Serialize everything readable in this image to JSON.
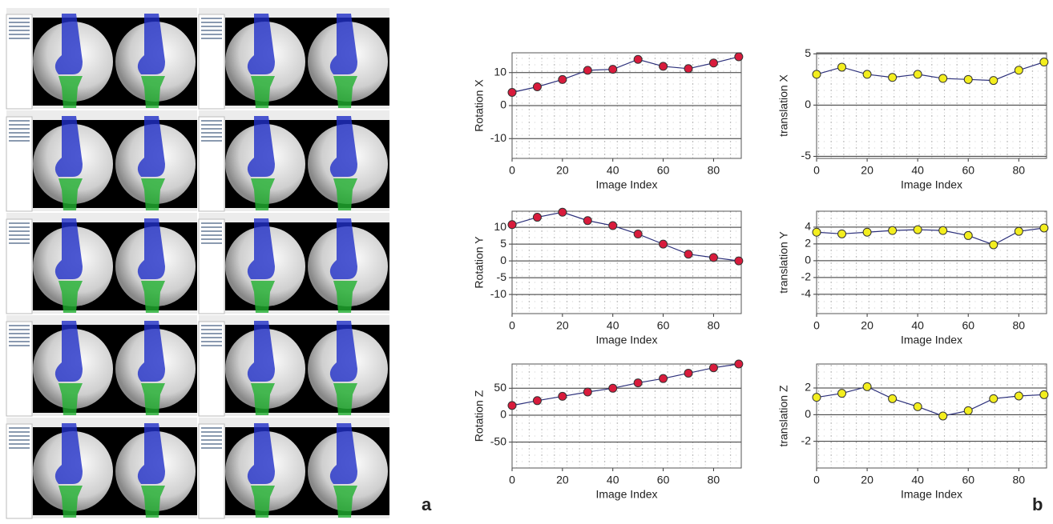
{
  "panel_labels": [
    "a",
    "b"
  ],
  "chart_data": [
    {
      "type": "line",
      "ylabel": "Rotation X",
      "xlabel": "Image Index",
      "x": [
        0,
        10,
        20,
        30,
        40,
        50,
        60,
        70,
        80,
        90
      ],
      "xlim": [
        0,
        91
      ],
      "xticks": [
        0,
        20,
        40,
        60,
        80
      ],
      "ylim": [
        -16,
        16
      ],
      "yticks": [
        -10,
        0,
        10
      ],
      "grid": true,
      "line_color": "#2b2f7a",
      "series": [
        {
          "color": "#d81b3c",
          "values": [
            4.0,
            5.7,
            7.9,
            10.7,
            11.0,
            14.0,
            11.9,
            11.2,
            12.9,
            14.8
          ]
        }
      ]
    },
    {
      "type": "line",
      "ylabel": "translation X",
      "xlabel": "Image Index",
      "x": [
        0,
        10,
        20,
        30,
        40,
        50,
        60,
        70,
        80,
        90
      ],
      "xlim": [
        0,
        91
      ],
      "xticks": [
        0,
        20,
        40,
        60,
        80
      ],
      "ylim": [
        -5.2,
        5.1
      ],
      "yticks": [
        -5,
        0,
        5
      ],
      "grid": true,
      "line_color": "#2b2f7a",
      "series": [
        {
          "color": "#f3ee1e",
          "values": [
            3.0,
            3.7,
            3.0,
            2.7,
            3.0,
            2.6,
            2.5,
            2.4,
            3.4,
            4.2
          ]
        }
      ]
    },
    {
      "type": "line",
      "ylabel": "Rotation Y",
      "xlabel": "Image Index",
      "x": [
        0,
        10,
        20,
        30,
        40,
        50,
        60,
        70,
        80,
        90
      ],
      "xlim": [
        0,
        91
      ],
      "xticks": [
        0,
        20,
        40,
        60,
        80
      ],
      "ylim": [
        -15.7,
        14.8
      ],
      "yticks": [
        -10,
        -5,
        0,
        5,
        10
      ],
      "grid": true,
      "line_color": "#2b2f7a",
      "series": [
        {
          "color": "#d81b3c",
          "values": [
            10.8,
            13,
            14.5,
            12,
            10.5,
            8,
            5,
            2,
            1,
            0
          ]
        }
      ]
    },
    {
      "type": "line",
      "ylabel": "translation Y",
      "xlabel": "Image Index",
      "x": [
        0,
        10,
        20,
        30,
        40,
        50,
        60,
        70,
        80,
        90
      ],
      "xlim": [
        0,
        91
      ],
      "xticks": [
        0,
        20,
        40,
        60,
        80
      ],
      "ylim": [
        -6.3,
        5.9
      ],
      "yticks": [
        -4,
        -2,
        0,
        2,
        4
      ],
      "grid": true,
      "line_color": "#2b2f7a",
      "series": [
        {
          "color": "#f3ee1e",
          "values": [
            3.4,
            3.2,
            3.4,
            3.6,
            3.7,
            3.6,
            3.0,
            1.9,
            3.5,
            3.9
          ]
        }
      ]
    },
    {
      "type": "line",
      "ylabel": "Rotation Z",
      "xlabel": "Image Index",
      "x": [
        0,
        10,
        20,
        30,
        40,
        50,
        60,
        70,
        80,
        90
      ],
      "xlim": [
        0,
        91
      ],
      "xticks": [
        0,
        20,
        40,
        60,
        80
      ],
      "ylim": [
        -98,
        95
      ],
      "yticks": [
        -50,
        0,
        50
      ],
      "grid": true,
      "line_color": "#2b2f7a",
      "series": [
        {
          "color": "#d81b3c",
          "values": [
            18,
            27,
            35,
            43,
            50,
            60,
            68,
            78,
            88,
            95
          ]
        }
      ]
    },
    {
      "type": "line",
      "ylabel": "translation Z",
      "xlabel": "Image Index",
      "x": [
        0,
        10,
        20,
        30,
        40,
        50,
        60,
        70,
        80,
        90
      ],
      "xlim": [
        0,
        91
      ],
      "xticks": [
        0,
        20,
        40,
        60,
        80
      ],
      "ylim": [
        -4,
        3.8
      ],
      "yticks": [
        -2,
        0,
        2
      ],
      "grid": true,
      "line_color": "#2b2f7a",
      "series": [
        {
          "color": "#f3ee1e",
          "values": [
            1.3,
            1.6,
            2.1,
            1.2,
            0.6,
            -0.1,
            0.3,
            1.2,
            1.4,
            1.5
          ]
        }
      ]
    }
  ]
}
